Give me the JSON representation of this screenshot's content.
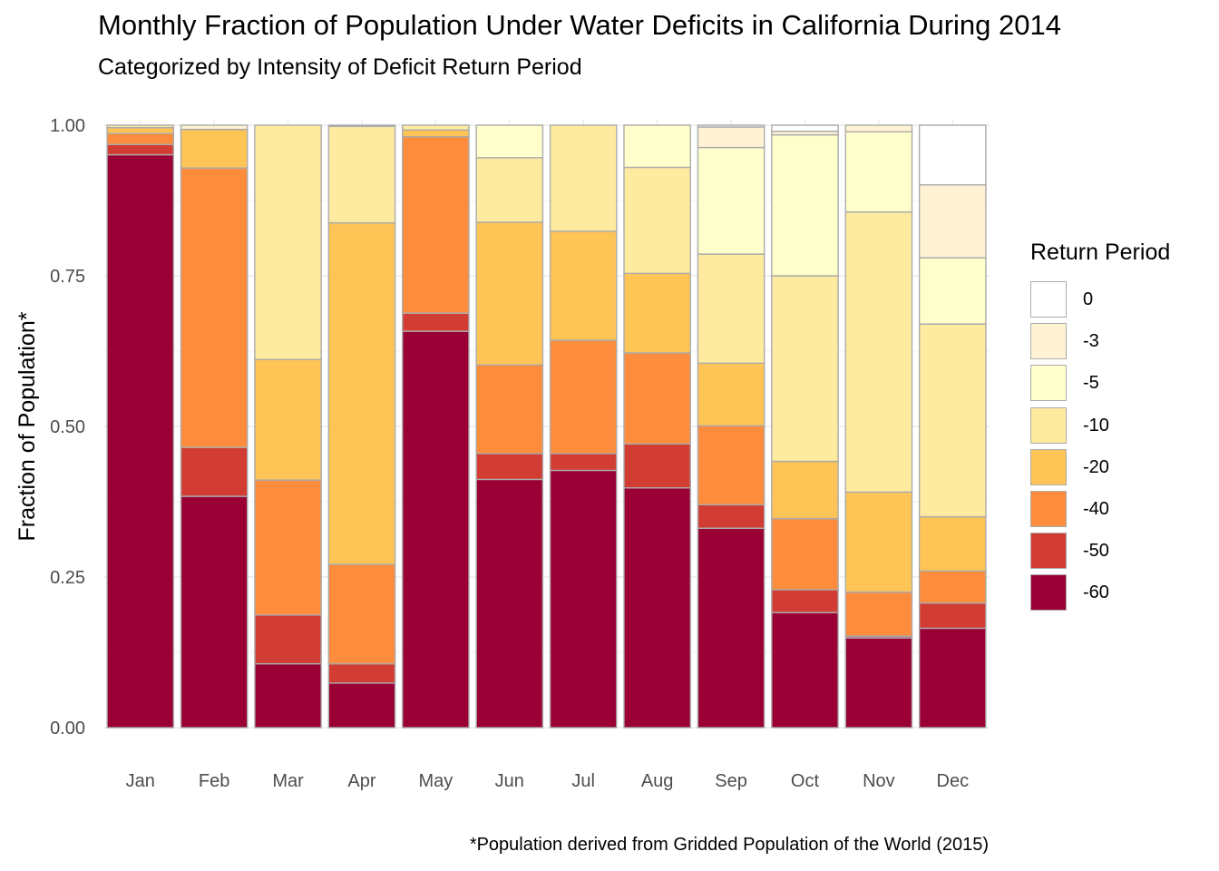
{
  "chart_data": {
    "type": "bar",
    "stacked": true,
    "title": "Monthly Fraction of Population Under Water Deficits in California During 2014",
    "subtitle": "Categorized by Intensity of Deficit Return Period",
    "ylabel": "Fraction of Population*",
    "caption": "*Population derived from Gridded Population of the World (2015)",
    "ylim": [
      0,
      1
    ],
    "yticks": [
      "0.00",
      "0.25",
      "0.50",
      "0.75",
      "1.00"
    ],
    "ytick_values": [
      0,
      0.25,
      0.5,
      0.75,
      1.0
    ],
    "grid": true,
    "legend_title": "Return Period",
    "legend_position": "right",
    "categories": [
      "Jan",
      "Feb",
      "Mar",
      "Apr",
      "May",
      "Jun",
      "Jul",
      "Aug",
      "Sep",
      "Oct",
      "Nov",
      "Dec"
    ],
    "series": [
      {
        "name": "-60",
        "color": "#9a0036",
        "values": [
          0.951,
          0.384,
          0.106,
          0.074,
          0.658,
          0.412,
          0.427,
          0.398,
          0.331,
          0.191,
          0.149,
          0.165
        ]
      },
      {
        "name": "-50",
        "color": "#d13d33",
        "values": [
          0.017,
          0.081,
          0.081,
          0.032,
          0.03,
          0.043,
          0.028,
          0.073,
          0.039,
          0.038,
          0.003,
          0.042
        ]
      },
      {
        "name": "-40",
        "color": "#fd8d3c",
        "values": [
          0.018,
          0.464,
          0.224,
          0.165,
          0.293,
          0.147,
          0.188,
          0.151,
          0.131,
          0.118,
          0.073,
          0.053
        ]
      },
      {
        "name": "-20",
        "color": "#fec456",
        "values": [
          0.01,
          0.064,
          0.2,
          0.567,
          0.011,
          0.237,
          0.181,
          0.132,
          0.104,
          0.095,
          0.166,
          0.09
        ]
      },
      {
        "name": "-10",
        "color": "#ffeb9f",
        "values": [
          0.004,
          0.0,
          0.389,
          0.16,
          0.008,
          0.107,
          0.176,
          0.176,
          0.181,
          0.308,
          0.465,
          0.32
        ]
      },
      {
        "name": "-5",
        "color": "#ffffcc",
        "values": [
          0.0,
          0.0,
          0.0,
          0.0,
          0.0,
          0.054,
          0.0,
          0.07,
          0.177,
          0.234,
          0.133,
          0.11
        ]
      },
      {
        "name": "-3",
        "color": "#fff3d3",
        "values": [
          0.0,
          0.007,
          0.0,
          0.002,
          0.0,
          0.0,
          0.0,
          0.0,
          0.034,
          0.006,
          0.011,
          0.121
        ]
      },
      {
        "name": "0",
        "color": "#ffffff",
        "values": [
          0.0,
          0.0,
          0.0,
          0.0,
          0.0,
          0.0,
          0.0,
          0.0,
          0.003,
          0.01,
          0.0,
          0.099
        ]
      }
    ],
    "legend_order": [
      "0",
      "-3",
      "-5",
      "-10",
      "-20",
      "-40",
      "-50",
      "-60"
    ],
    "bar_outline_color": "#ababab"
  }
}
